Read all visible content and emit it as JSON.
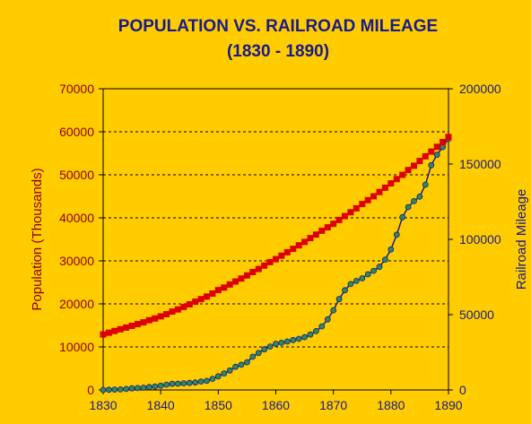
{
  "chart_data": {
    "type": "line",
    "title": "POPULATION VS. RAILROAD MILEAGE",
    "subtitle": "(1830 - 1890)",
    "ylabel": "Population (Thousands)",
    "y2label": "Railroad Mileage",
    "xlim": [
      1830,
      1890
    ],
    "ylim": [
      0,
      70000
    ],
    "y2lim": [
      0,
      200000
    ],
    "x_ticks": [
      "1830",
      "1840",
      "1850",
      "1860",
      "1870",
      "1880",
      "1890"
    ],
    "y_ticks": [
      "0",
      "10000",
      "20000",
      "30000",
      "40000",
      "50000",
      "60000",
      "70000"
    ],
    "y2_ticks": [
      "0",
      "50000",
      "100000",
      "150000",
      "200000"
    ],
    "grid": "horizontal dashed",
    "colors": {
      "background": "#FFCC00",
      "population": "#DD0000",
      "railroad_line": "#1A1A8C",
      "railroad_marker": "#2E8B57",
      "title": "#1A1A8C",
      "left_axis": "#8B0000",
      "right_axis": "#1A1A8C"
    },
    "series": [
      {
        "axis": "left",
        "marker": "square",
        "x": [
          1830,
          1831,
          1832,
          1833,
          1834,
          1835,
          1836,
          1837,
          1838,
          1839,
          1840,
          1841,
          1842,
          1843,
          1844,
          1845,
          1846,
          1847,
          1848,
          1849,
          1850,
          1851,
          1852,
          1853,
          1854,
          1855,
          1856,
          1857,
          1858,
          1859,
          1860,
          1861,
          1862,
          1863,
          1864,
          1865,
          1866,
          1867,
          1868,
          1869,
          1870,
          1871,
          1872,
          1873,
          1874,
          1875,
          1876,
          1877,
          1878,
          1879,
          1880,
          1881,
          1882,
          1883,
          1884,
          1885,
          1886,
          1887,
          1888,
          1889,
          1890
        ],
        "values": [
          12900,
          13300,
          13700,
          14100,
          14500,
          14900,
          15300,
          15700,
          16200,
          16600,
          17100,
          17600,
          18200,
          18700,
          19300,
          19900,
          20500,
          21100,
          21700,
          22400,
          23200,
          23800,
          24500,
          25200,
          25900,
          26600,
          27400,
          28100,
          28900,
          29700,
          30400,
          31200,
          32000,
          32800,
          33600,
          34400,
          35300,
          36100,
          37000,
          37800,
          38600,
          39500,
          40400,
          41300,
          42200,
          43200,
          44100,
          45000,
          46000,
          47000,
          48000,
          49000,
          50000,
          51100,
          52100,
          53200,
          54300,
          55400,
          56500,
          57600,
          58800
        ]
      },
      {
        "axis": "right",
        "marker": "circle",
        "x": [
          1830,
          1831,
          1832,
          1833,
          1834,
          1835,
          1836,
          1837,
          1838,
          1839,
          1840,
          1841,
          1842,
          1843,
          1844,
          1845,
          1846,
          1847,
          1848,
          1849,
          1850,
          1851,
          1852,
          1853,
          1854,
          1855,
          1856,
          1857,
          1858,
          1859,
          1860,
          1861,
          1862,
          1863,
          1864,
          1865,
          1866,
          1867,
          1868,
          1869,
          1870,
          1871,
          1872,
          1873,
          1874,
          1875,
          1876,
          1877,
          1878,
          1879,
          1880,
          1881,
          1882,
          1883,
          1884,
          1885,
          1886,
          1887,
          1888,
          1889,
          1890
        ],
        "values": [
          23,
          95,
          229,
          380,
          633,
          1098,
          1273,
          1497,
          1913,
          2302,
          2818,
          3535,
          4026,
          4185,
          4377,
          4633,
          4930,
          5598,
          5996,
          7365,
          9021,
          10982,
          12908,
          15360,
          16720,
          18374,
          22076,
          24503,
          26968,
          28789,
          30626,
          31286,
          32120,
          33170,
          33908,
          35085,
          36801,
          39050,
          42229,
          46844,
          52922,
          60301,
          66171,
          70268,
          72385,
          74096,
          76808,
          79082,
          81747,
          86556,
          93262,
          103108,
          114677,
          121422,
          125345,
          128320,
          136338,
          149214,
          156114,
          161276,
          166703
        ]
      }
    ]
  }
}
